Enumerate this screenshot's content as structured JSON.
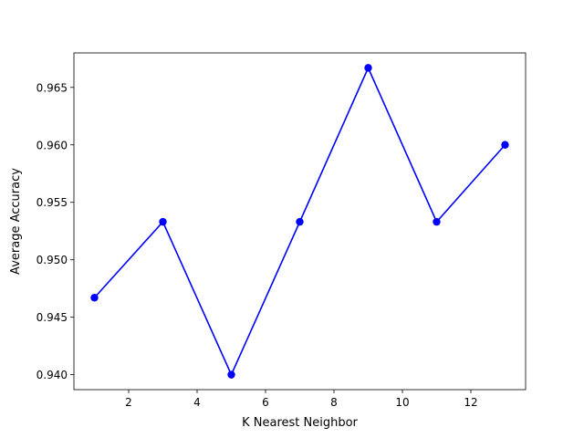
{
  "chart_data": {
    "type": "line",
    "title": "",
    "xlabel": "K Nearest Neighbor",
    "ylabel": "Average Accuracy",
    "x": [
      1,
      3,
      5,
      7,
      9,
      11,
      13
    ],
    "series": [
      {
        "values": [
          0.9467,
          0.9533,
          0.94,
          0.9533,
          0.9667,
          0.9533,
          0.96
        ],
        "color": "#0000ff",
        "marker": "circle"
      }
    ],
    "xlim": [
      0.4,
      13.6
    ],
    "ylim": [
      0.9387,
      0.968
    ],
    "xticks": [
      2,
      4,
      6,
      8,
      10,
      12
    ],
    "xtick_labels": [
      "2",
      "4",
      "6",
      "8",
      "10",
      "12"
    ],
    "yticks": [
      0.94,
      0.945,
      0.95,
      0.955,
      0.96,
      0.965
    ],
    "ytick_labels": [
      "0.940",
      "0.945",
      "0.950",
      "0.955",
      "0.960",
      "0.965"
    ],
    "grid": false,
    "legend": "none"
  }
}
